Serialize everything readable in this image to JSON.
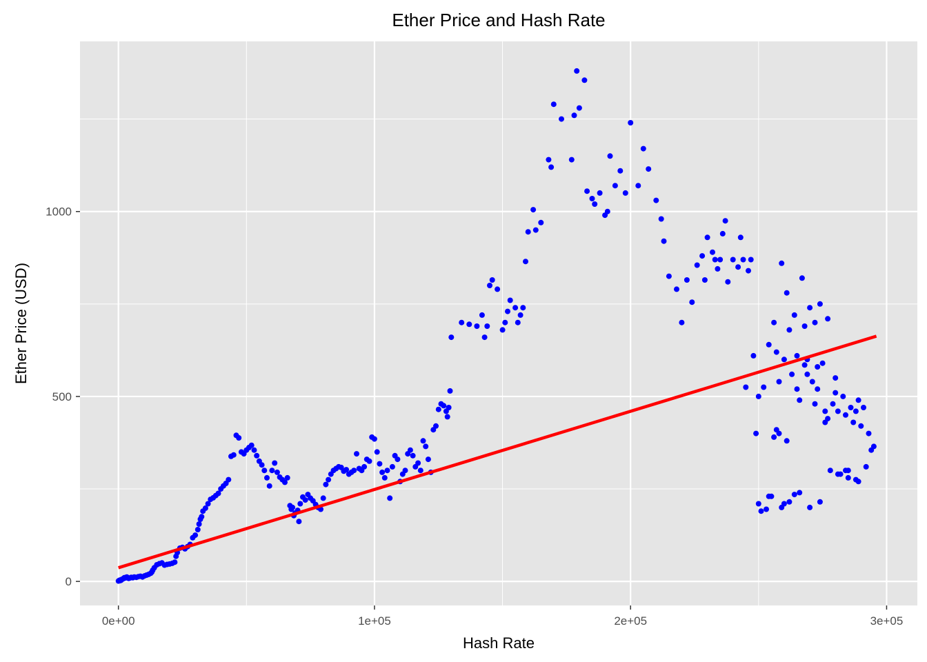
{
  "chart_data": {
    "type": "scatter",
    "title": "Ether Price and Hash Rate",
    "xlabel": "Hash Rate",
    "ylabel": "Ether Price (USD)",
    "xlim": [
      -15000,
      312000
    ],
    "ylim": [
      -65,
      1460
    ],
    "x_ticks": [
      0,
      100000,
      200000,
      300000
    ],
    "x_tick_labels": [
      "0e+00",
      "1e+05",
      "2e+05",
      "3e+05"
    ],
    "y_ticks": [
      0,
      500,
      1000
    ],
    "y_tick_labels": [
      "0",
      "500",
      "1000"
    ],
    "grid": true,
    "panel_background": "#e5e5e5",
    "grid_color": "#ffffff",
    "point_color": "#0000ff",
    "fit_line_color": "#ff0000",
    "fit_line": {
      "x": [
        0,
        296000
      ],
      "y": [
        37,
        663
      ]
    },
    "series": [
      {
        "values": [
          [
            0,
            1
          ],
          [
            200,
            2
          ],
          [
            400,
            3
          ],
          [
            600,
            2
          ],
          [
            800,
            4
          ],
          [
            1000,
            3
          ],
          [
            1200,
            5
          ],
          [
            1500,
            6
          ],
          [
            1800,
            7
          ],
          [
            2000,
            8
          ],
          [
            2300,
            10
          ],
          [
            2600,
            9
          ],
          [
            3000,
            11
          ],
          [
            3300,
            12
          ],
          [
            3600,
            10
          ],
          [
            4000,
            8
          ],
          [
            4400,
            9
          ],
          [
            5000,
            11
          ],
          [
            5600,
            10
          ],
          [
            6200,
            12
          ],
          [
            7000,
            11
          ],
          [
            7800,
            13
          ],
          [
            8600,
            14
          ],
          [
            9400,
            12
          ],
          [
            10200,
            15
          ],
          [
            11000,
            17
          ],
          [
            11800,
            19
          ],
          [
            12600,
            22
          ],
          [
            13000,
            25
          ],
          [
            13400,
            30
          ],
          [
            14000,
            37
          ],
          [
            15000,
            45
          ],
          [
            16000,
            48
          ],
          [
            17000,
            50
          ],
          [
            18000,
            44
          ],
          [
            19000,
            46
          ],
          [
            20000,
            47
          ],
          [
            21000,
            49
          ],
          [
            22000,
            52
          ],
          [
            22500,
            68
          ],
          [
            23000,
            78
          ],
          [
            24000,
            90
          ],
          [
            25000,
            92
          ],
          [
            26000,
            88
          ],
          [
            27000,
            94
          ],
          [
            28000,
            100
          ],
          [
            29000,
            118
          ],
          [
            30000,
            125
          ],
          [
            31000,
            140
          ],
          [
            31500,
            155
          ],
          [
            32000,
            168
          ],
          [
            32500,
            175
          ],
          [
            33000,
            190
          ],
          [
            34000,
            198
          ],
          [
            35000,
            210
          ],
          [
            36000,
            222
          ],
          [
            37000,
            226
          ],
          [
            38000,
            232
          ],
          [
            39000,
            238
          ],
          [
            40000,
            250
          ],
          [
            41000,
            258
          ],
          [
            42000,
            265
          ],
          [
            43000,
            275
          ],
          [
            44000,
            338
          ],
          [
            45000,
            342
          ],
          [
            46000,
            395
          ],
          [
            47000,
            388
          ],
          [
            48000,
            350
          ],
          [
            49000,
            345
          ],
          [
            50000,
            355
          ],
          [
            51000,
            362
          ],
          [
            52000,
            368
          ],
          [
            53000,
            355
          ],
          [
            54000,
            340
          ],
          [
            55000,
            325
          ],
          [
            56000,
            315
          ],
          [
            57000,
            300
          ],
          [
            58000,
            280
          ],
          [
            59000,
            258
          ],
          [
            60000,
            300
          ],
          [
            61000,
            320
          ],
          [
            62000,
            295
          ],
          [
            63000,
            282
          ],
          [
            64000,
            275
          ],
          [
            65000,
            268
          ],
          [
            66000,
            280
          ],
          [
            67000,
            205
          ],
          [
            67500,
            195
          ],
          [
            68000,
            200
          ],
          [
            68500,
            178
          ],
          [
            69000,
            185
          ],
          [
            70000,
            192
          ],
          [
            70500,
            162
          ],
          [
            71000,
            210
          ],
          [
            72000,
            228
          ],
          [
            73000,
            220
          ],
          [
            74000,
            235
          ],
          [
            75000,
            225
          ],
          [
            76000,
            218
          ],
          [
            77000,
            208
          ],
          [
            78000,
            200
          ],
          [
            79000,
            195
          ],
          [
            80000,
            225
          ],
          [
            81000,
            262
          ],
          [
            82000,
            275
          ],
          [
            83000,
            290
          ],
          [
            84000,
            300
          ],
          [
            85000,
            305
          ],
          [
            86000,
            310
          ],
          [
            87000,
            308
          ],
          [
            88000,
            298
          ],
          [
            89000,
            302
          ],
          [
            90000,
            290
          ],
          [
            91000,
            295
          ],
          [
            92000,
            300
          ],
          [
            93000,
            345
          ],
          [
            94000,
            305
          ],
          [
            95000,
            300
          ],
          [
            96000,
            310
          ],
          [
            97000,
            330
          ],
          [
            98000,
            325
          ],
          [
            99000,
            390
          ],
          [
            100000,
            385
          ],
          [
            101000,
            350
          ],
          [
            102000,
            318
          ],
          [
            103000,
            295
          ],
          [
            104000,
            280
          ],
          [
            105000,
            300
          ],
          [
            106000,
            225
          ],
          [
            107000,
            310
          ],
          [
            108000,
            340
          ],
          [
            109000,
            330
          ],
          [
            110000,
            270
          ],
          [
            111000,
            290
          ],
          [
            112000,
            300
          ],
          [
            113000,
            345
          ],
          [
            114000,
            355
          ],
          [
            115000,
            340
          ],
          [
            116000,
            310
          ],
          [
            117000,
            320
          ],
          [
            118000,
            300
          ],
          [
            119000,
            380
          ],
          [
            120000,
            365
          ],
          [
            121000,
            330
          ],
          [
            122000,
            295
          ],
          [
            123000,
            410
          ],
          [
            124000,
            420
          ],
          [
            125000,
            465
          ],
          [
            126000,
            480
          ],
          [
            127000,
            475
          ],
          [
            128000,
            460
          ],
          [
            128500,
            445
          ],
          [
            129000,
            470
          ],
          [
            129500,
            515
          ],
          [
            130000,
            660
          ],
          [
            134000,
            700
          ],
          [
            137000,
            695
          ],
          [
            140000,
            690
          ],
          [
            142000,
            720
          ],
          [
            143000,
            660
          ],
          [
            144000,
            690
          ],
          [
            145000,
            800
          ],
          [
            146000,
            815
          ],
          [
            148000,
            790
          ],
          [
            150000,
            680
          ],
          [
            151000,
            700
          ],
          [
            152000,
            730
          ],
          [
            153000,
            760
          ],
          [
            155000,
            740
          ],
          [
            156000,
            700
          ],
          [
            157000,
            720
          ],
          [
            158000,
            740
          ],
          [
            159000,
            865
          ],
          [
            160000,
            945
          ],
          [
            162000,
            1005
          ],
          [
            163000,
            950
          ],
          [
            165000,
            970
          ],
          [
            168000,
            1140
          ],
          [
            169000,
            1120
          ],
          [
            170000,
            1290
          ],
          [
            173000,
            1250
          ],
          [
            177000,
            1140
          ],
          [
            178000,
            1260
          ],
          [
            179000,
            1380
          ],
          [
            180000,
            1280
          ],
          [
            182000,
            1355
          ],
          [
            183000,
            1055
          ],
          [
            185000,
            1035
          ],
          [
            186000,
            1020
          ],
          [
            188000,
            1050
          ],
          [
            190000,
            990
          ],
          [
            191000,
            1000
          ],
          [
            192000,
            1150
          ],
          [
            194000,
            1070
          ],
          [
            196000,
            1110
          ],
          [
            198000,
            1050
          ],
          [
            200000,
            1240
          ],
          [
            203000,
            1070
          ],
          [
            205000,
            1170
          ],
          [
            207000,
            1115
          ],
          [
            210000,
            1030
          ],
          [
            212000,
            980
          ],
          [
            213000,
            920
          ],
          [
            215000,
            825
          ],
          [
            218000,
            790
          ],
          [
            220000,
            700
          ],
          [
            222000,
            815
          ],
          [
            224000,
            755
          ],
          [
            226000,
            855
          ],
          [
            228000,
            880
          ],
          [
            229000,
            815
          ],
          [
            230000,
            930
          ],
          [
            232000,
            890
          ],
          [
            233000,
            870
          ],
          [
            234000,
            845
          ],
          [
            235000,
            870
          ],
          [
            236000,
            940
          ],
          [
            237000,
            975
          ],
          [
            238000,
            810
          ],
          [
            240000,
            870
          ],
          [
            242000,
            850
          ],
          [
            243000,
            930
          ],
          [
            244000,
            870
          ],
          [
            245000,
            525
          ],
          [
            246000,
            840
          ],
          [
            247000,
            870
          ],
          [
            248000,
            610
          ],
          [
            249000,
            400
          ],
          [
            250000,
            500
          ],
          [
            251000,
            190
          ],
          [
            252000,
            525
          ],
          [
            253000,
            195
          ],
          [
            254000,
            640
          ],
          [
            255000,
            230
          ],
          [
            256000,
            700
          ],
          [
            257000,
            620
          ],
          [
            258000,
            540
          ],
          [
            259000,
            860
          ],
          [
            260000,
            600
          ],
          [
            261000,
            780
          ],
          [
            262000,
            680
          ],
          [
            263000,
            560
          ],
          [
            264000,
            720
          ],
          [
            265000,
            610
          ],
          [
            266000,
            490
          ],
          [
            267000,
            820
          ],
          [
            268000,
            690
          ],
          [
            269000,
            560
          ],
          [
            270000,
            740
          ],
          [
            271000,
            540
          ],
          [
            272000,
            700
          ],
          [
            273000,
            520
          ],
          [
            274000,
            750
          ],
          [
            275000,
            590
          ],
          [
            276000,
            460
          ],
          [
            277000,
            710
          ],
          [
            278000,
            300
          ],
          [
            279000,
            480
          ],
          [
            280000,
            550
          ],
          [
            281000,
            460
          ],
          [
            282000,
            290
          ],
          [
            283000,
            500
          ],
          [
            284000,
            450
          ],
          [
            285000,
            280
          ],
          [
            286000,
            470
          ],
          [
            287000,
            430
          ],
          [
            288000,
            460
          ],
          [
            289000,
            490
          ],
          [
            290000,
            420
          ],
          [
            291000,
            470
          ],
          [
            292000,
            310
          ],
          [
            293000,
            400
          ],
          [
            294000,
            355
          ],
          [
            295000,
            365
          ],
          [
            254000,
            230
          ],
          [
            258000,
            400
          ],
          [
            262000,
            215
          ],
          [
            266000,
            240
          ],
          [
            270000,
            200
          ],
          [
            274000,
            215
          ],
          [
            256000,
            390
          ],
          [
            260000,
            210
          ],
          [
            264000,
            235
          ],
          [
            268000,
            585
          ],
          [
            272000,
            480
          ],
          [
            276000,
            430
          ],
          [
            280000,
            510
          ],
          [
            284000,
            300
          ],
          [
            288000,
            275
          ],
          [
            257000,
            410
          ],
          [
            261000,
            380
          ],
          [
            265000,
            520
          ],
          [
            269000,
            600
          ],
          [
            273000,
            580
          ],
          [
            277000,
            440
          ],
          [
            281000,
            290
          ],
          [
            285000,
            300
          ],
          [
            289000,
            270
          ],
          [
            250000,
            210
          ],
          [
            259000,
            200
          ]
        ]
      }
    ]
  }
}
